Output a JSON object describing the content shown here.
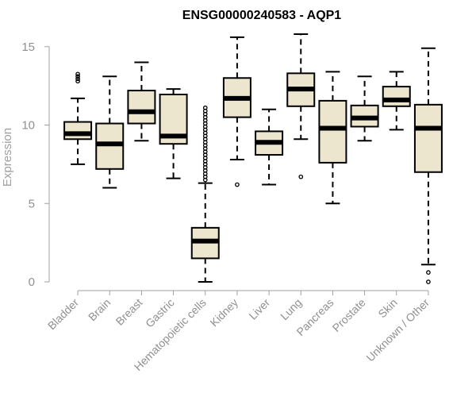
{
  "chart_data": {
    "type": "boxplot",
    "title": "ENSG00000240583 - AQP1",
    "xlabel": "",
    "ylabel": "Expression",
    "ylim": [
      0,
      15.8
    ],
    "yticks": [
      0,
      5,
      10,
      15
    ],
    "grid": false,
    "box_fill": "#ede6ce",
    "categories": [
      "Bladder",
      "Brain",
      "Breast",
      "Gastric",
      "Hematopoietic cells",
      "Kidney",
      "Liver",
      "Lung",
      "Pancreas",
      "Prostate",
      "Skin",
      "Unknown / Other"
    ],
    "boxes": [
      {
        "category": "Bladder",
        "whisker_low": 7.5,
        "q1": 9.1,
        "median": 9.45,
        "q3": 10.2,
        "whisker_high": 11.7,
        "outliers": [
          12.8,
          12.95,
          13.1,
          13.25
        ]
      },
      {
        "category": "Brain",
        "whisker_low": 6.0,
        "q1": 7.2,
        "median": 8.8,
        "q3": 10.1,
        "whisker_high": 13.1,
        "outliers": []
      },
      {
        "category": "Breast",
        "whisker_low": 9.0,
        "q1": 10.1,
        "median": 10.85,
        "q3": 12.2,
        "whisker_high": 14.0,
        "outliers": []
      },
      {
        "category": "Gastric",
        "whisker_low": 6.6,
        "q1": 8.8,
        "median": 9.3,
        "q3": 11.95,
        "whisker_high": 12.3,
        "outliers": []
      },
      {
        "category": "Hematopoietic cells",
        "whisker_low": 0.0,
        "q1": 1.5,
        "median": 2.6,
        "q3": 3.45,
        "whisker_high": 6.3,
        "outliers": [
          6.5,
          6.7,
          6.9,
          7.1,
          7.3,
          7.5,
          7.7,
          7.9,
          8.1,
          8.3,
          8.5,
          8.7,
          8.9,
          9.1,
          9.3,
          9.5,
          9.7,
          9.9,
          10.1,
          10.3,
          10.5,
          10.7,
          10.9,
          11.1
        ]
      },
      {
        "category": "Kidney",
        "whisker_low": 7.8,
        "q1": 10.5,
        "median": 11.7,
        "q3": 13.0,
        "whisker_high": 15.6,
        "outliers": [
          6.2
        ]
      },
      {
        "category": "Liver",
        "whisker_low": 6.2,
        "q1": 8.1,
        "median": 8.9,
        "q3": 9.6,
        "whisker_high": 11.0,
        "outliers": []
      },
      {
        "category": "Lung",
        "whisker_low": 9.1,
        "q1": 11.2,
        "median": 12.3,
        "q3": 13.3,
        "whisker_high": 15.8,
        "outliers": [
          6.7
        ]
      },
      {
        "category": "Pancreas",
        "whisker_low": 5.0,
        "q1": 7.6,
        "median": 9.8,
        "q3": 11.55,
        "whisker_high": 13.4,
        "outliers": []
      },
      {
        "category": "Prostate",
        "whisker_low": 9.0,
        "q1": 9.9,
        "median": 10.45,
        "q3": 11.25,
        "whisker_high": 13.1,
        "outliers": []
      },
      {
        "category": "Skin",
        "whisker_low": 9.7,
        "q1": 11.2,
        "median": 11.6,
        "q3": 12.45,
        "whisker_high": 13.4,
        "outliers": []
      },
      {
        "category": "Unknown / Other",
        "whisker_low": 1.1,
        "q1": 7.0,
        "median": 9.8,
        "q3": 11.3,
        "whisker_high": 14.9,
        "outliers": [
          0.6,
          0.0
        ]
      }
    ]
  }
}
